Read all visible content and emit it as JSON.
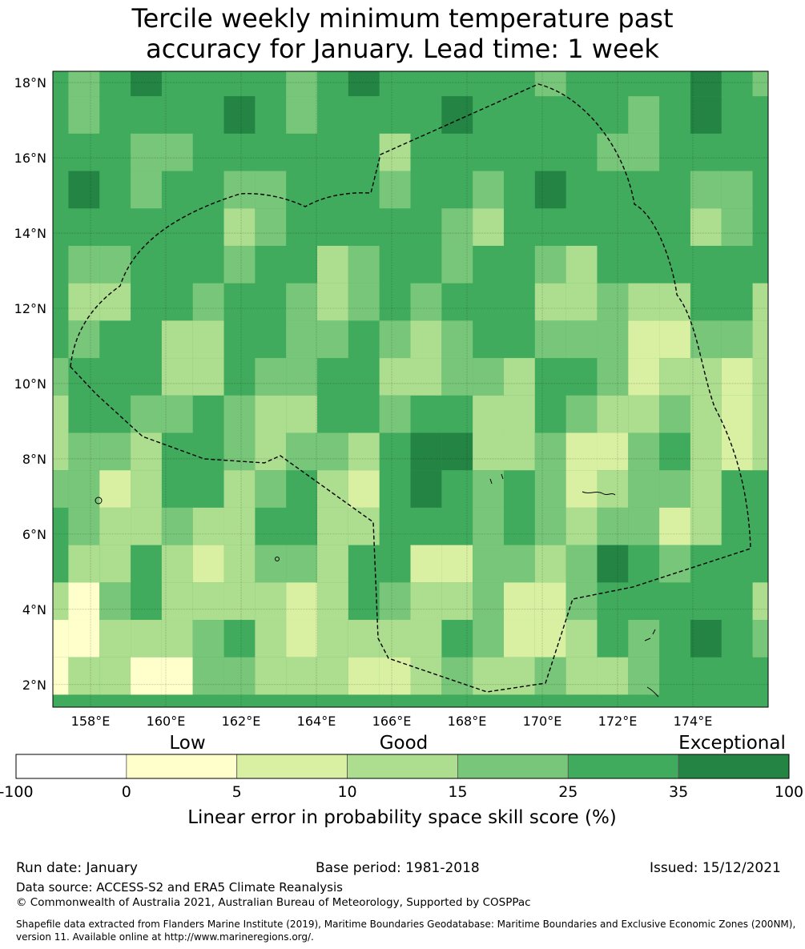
{
  "title": {
    "line1": "Tercile weekly minimum temperature past",
    "line2": "accuracy for January. Lead time: 1 week"
  },
  "map": {
    "lat_ticks": [
      "18°N",
      "16°N",
      "14°N",
      "12°N",
      "10°N",
      "8°N",
      "6°N",
      "4°N",
      "2°N"
    ],
    "lon_ticks": [
      "158°E",
      "160°E",
      "162°E",
      "164°E",
      "166°E",
      "168°E",
      "170°E",
      "172°E",
      "174°E"
    ],
    "lat_tick_values": [
      18,
      16,
      14,
      12,
      10,
      8,
      6,
      4,
      2
    ],
    "lon_tick_values": [
      158,
      160,
      162,
      164,
      166,
      168,
      170,
      172,
      174
    ],
    "extent": {
      "lon_min": 157.0,
      "lon_max": 176.0,
      "lat_min": 1.4,
      "lat_max": 18.3
    },
    "boundary_label": "EEZ boundary"
  },
  "legend": {
    "category_labels": [
      "Low",
      "Good",
      "Exceptional"
    ],
    "tick_labels": [
      "-100",
      "0",
      "5",
      "10",
      "15",
      "25",
      "35",
      "100"
    ],
    "colors": [
      "#ffffff",
      "#ffffcc",
      "#d9f0a3",
      "#addd8e",
      "#78c679",
      "#41ab5d",
      "#238443"
    ],
    "axis_label": "Linear error in probability space skill score (%)"
  },
  "footer": {
    "run_date": "Run date: January",
    "base_period": "Base period: 1981-2018",
    "issued": "Issued: 15/12/2021",
    "data_source": "Data source: ACCESS-S2 and ERA5 Climate Reanalysis",
    "copyright": "© Commonwealth of Australia 2021, Australian Bureau of Meteorology, Supported by COSPPac",
    "shapefile_line1": "Shapefile data extracted from Flanders Marine Institute (2019), Maritime Boundaries Geodatabase: Maritime Boundaries and Exclusive Economic Zones (200NM),",
    "shapefile_line2": "version 11. Available online at http://www.marineregions.org/."
  }
}
